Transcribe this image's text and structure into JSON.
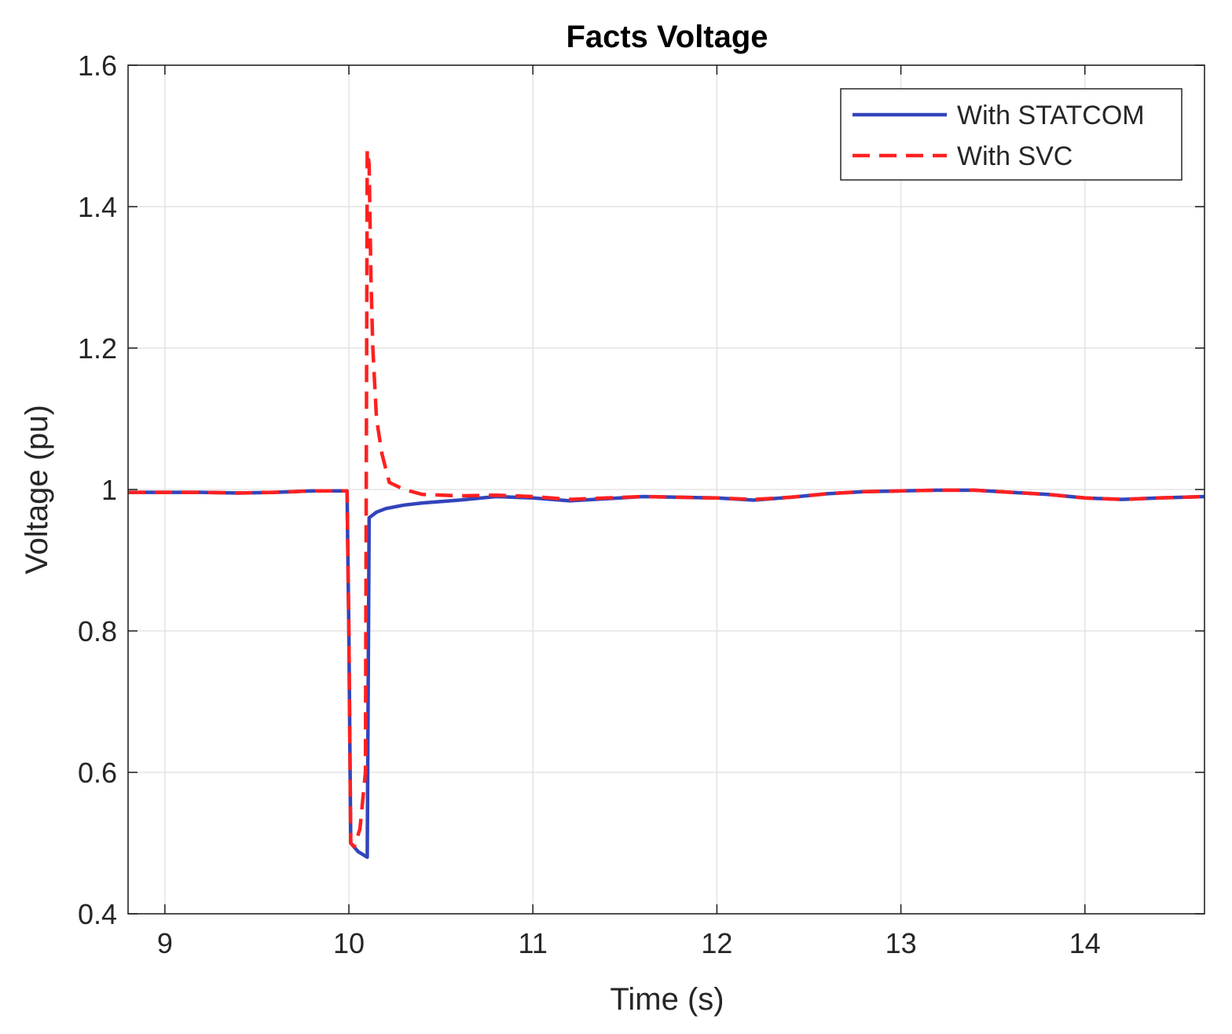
{
  "chart_data": {
    "type": "line",
    "title": "Facts Voltage",
    "xlabel": "Time (s)",
    "ylabel": "Voltage (pu)",
    "xlim": [
      8.8,
      14.65
    ],
    "ylim": [
      0.4,
      1.6
    ],
    "xticks": [
      9,
      10,
      11,
      12,
      13,
      14
    ],
    "xtick_labels": [
      "9",
      "10",
      "11",
      "12",
      "13",
      "14"
    ],
    "yticks": [
      0.4,
      0.6,
      0.8,
      1.0,
      1.2,
      1.4,
      1.6
    ],
    "ytick_labels": [
      "0.4",
      "0.6",
      "0.8",
      "1",
      "1.2",
      "1.4",
      "1.6"
    ],
    "grid": true,
    "legend_position": "top-right",
    "series": [
      {
        "name": "With STATCOM",
        "color": "#3344bb",
        "style": "solid",
        "x": [
          8.8,
          9.0,
          9.2,
          9.4,
          9.6,
          9.8,
          9.99,
          10.0,
          10.01,
          10.05,
          10.1,
          10.11,
          10.15,
          10.2,
          10.3,
          10.4,
          10.6,
          10.8,
          11.0,
          11.2,
          11.4,
          11.6,
          11.8,
          12.0,
          12.2,
          12.4,
          12.6,
          12.8,
          13.0,
          13.2,
          13.4,
          13.6,
          13.8,
          14.0,
          14.2,
          14.4,
          14.65
        ],
        "y": [
          0.996,
          0.996,
          0.996,
          0.995,
          0.996,
          0.998,
          0.998,
          0.8,
          0.5,
          0.488,
          0.48,
          0.96,
          0.968,
          0.973,
          0.978,
          0.981,
          0.985,
          0.99,
          0.988,
          0.984,
          0.987,
          0.99,
          0.989,
          0.988,
          0.985,
          0.989,
          0.994,
          0.997,
          0.998,
          0.999,
          0.999,
          0.996,
          0.993,
          0.988,
          0.986,
          0.988,
          0.99
        ]
      },
      {
        "name": "With SVC",
        "color": "#ff2020",
        "style": "dashed",
        "x": [
          8.8,
          9.0,
          9.2,
          9.4,
          9.6,
          9.8,
          9.99,
          10.0,
          10.01,
          10.03,
          10.06,
          10.09,
          10.1,
          10.11,
          10.12,
          10.13,
          10.15,
          10.18,
          10.22,
          10.3,
          10.4,
          10.6,
          10.8,
          11.0,
          11.2,
          11.4,
          11.6,
          11.8,
          12.0,
          12.2,
          12.4,
          12.6,
          12.8,
          13.0,
          13.2,
          13.4,
          13.6,
          13.8,
          14.0,
          14.2,
          14.4,
          14.65
        ],
        "y": [
          0.996,
          0.996,
          0.996,
          0.995,
          0.996,
          0.998,
          0.998,
          0.8,
          0.5,
          0.495,
          0.52,
          0.6,
          1.48,
          1.46,
          1.3,
          1.2,
          1.1,
          1.05,
          1.01,
          1.0,
          0.993,
          0.991,
          0.992,
          0.99,
          0.986,
          0.988,
          0.99,
          0.989,
          0.988,
          0.986,
          0.989,
          0.994,
          0.997,
          0.998,
          0.999,
          0.999,
          0.996,
          0.993,
          0.988,
          0.986,
          0.988,
          0.99
        ]
      }
    ]
  }
}
